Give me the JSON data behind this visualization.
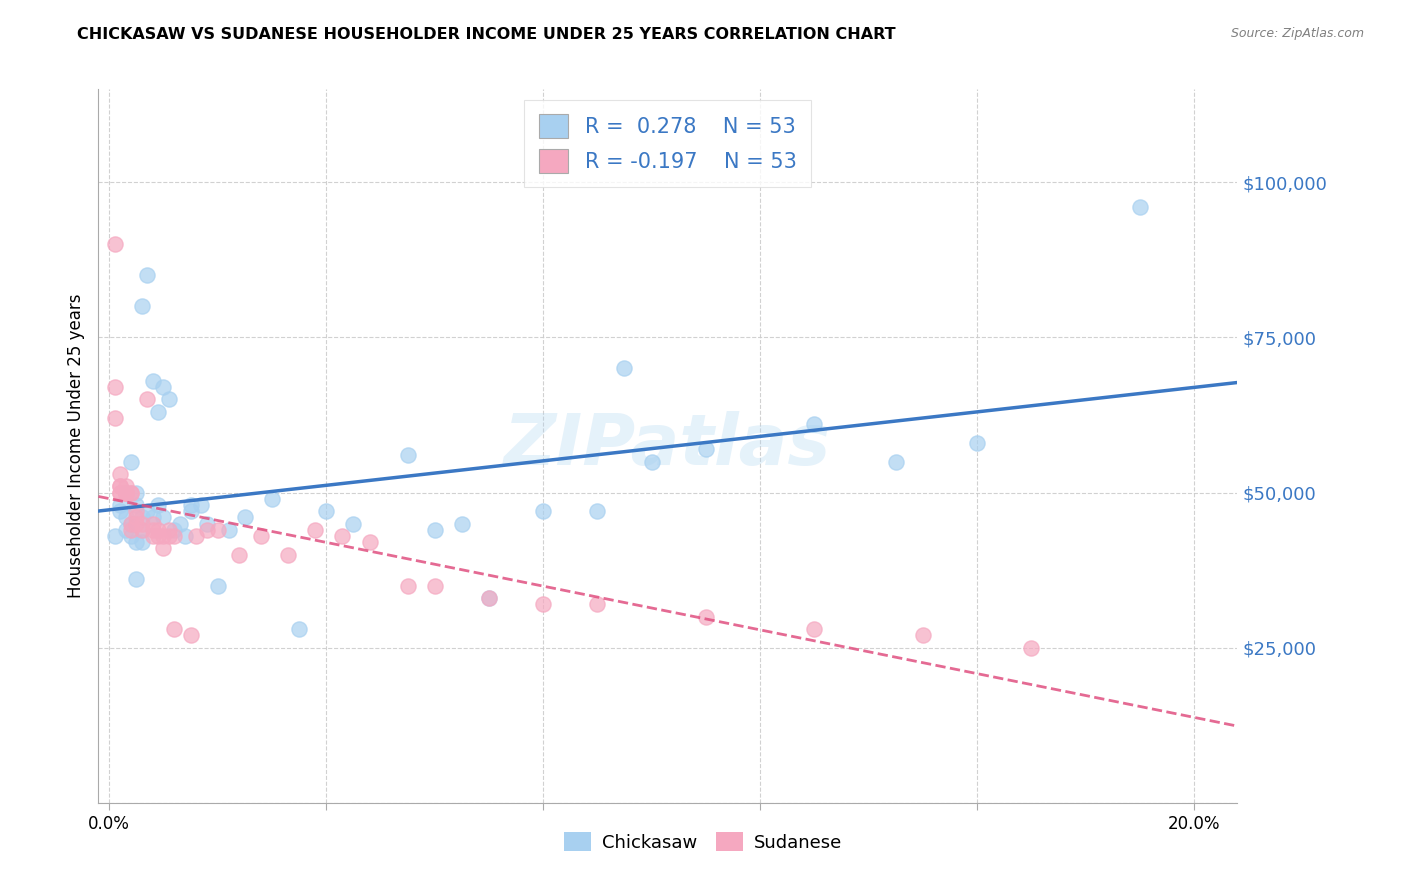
{
  "title": "CHICKASAW VS SUDANESE HOUSEHOLDER INCOME UNDER 25 YEARS CORRELATION CHART",
  "source": "Source: ZipAtlas.com",
  "ylabel_label": "Householder Income Under 25 years",
  "xlim": [
    -0.002,
    0.208
  ],
  "ylim": [
    0,
    115000
  ],
  "chickasaw_color": "#a8d0f0",
  "sudanese_color": "#f5a8c0",
  "chickasaw_line_color": "#3b78c4",
  "sudanese_line_color": "#e05080",
  "legend_R_chickasaw": "0.278",
  "legend_R_sudanese": "-0.197",
  "legend_N": "53",
  "watermark": "ZIPatlas",
  "chickasaw_x": [
    0.001,
    0.002,
    0.002,
    0.003,
    0.003,
    0.003,
    0.004,
    0.004,
    0.004,
    0.005,
    0.005,
    0.005,
    0.005,
    0.006,
    0.006,
    0.006,
    0.006,
    0.007,
    0.007,
    0.008,
    0.008,
    0.009,
    0.009,
    0.01,
    0.01,
    0.011,
    0.012,
    0.013,
    0.014,
    0.015,
    0.015,
    0.017,
    0.018,
    0.02,
    0.022,
    0.025,
    0.03,
    0.035,
    0.04,
    0.045,
    0.055,
    0.06,
    0.065,
    0.07,
    0.08,
    0.09,
    0.095,
    0.1,
    0.11,
    0.13,
    0.145,
    0.16,
    0.19
  ],
  "chickasaw_y": [
    43000,
    47000,
    48000,
    50000,
    44000,
    46000,
    45000,
    43000,
    55000,
    36000,
    42000,
    50000,
    48000,
    42000,
    44000,
    46000,
    80000,
    47000,
    85000,
    68000,
    46000,
    63000,
    48000,
    46000,
    67000,
    65000,
    44000,
    45000,
    43000,
    47000,
    48000,
    48000,
    45000,
    35000,
    44000,
    46000,
    49000,
    28000,
    47000,
    45000,
    56000,
    44000,
    45000,
    33000,
    47000,
    47000,
    70000,
    55000,
    57000,
    61000,
    55000,
    58000,
    96000
  ],
  "sudanese_x": [
    0.001,
    0.001,
    0.001,
    0.002,
    0.002,
    0.002,
    0.002,
    0.002,
    0.003,
    0.003,
    0.003,
    0.003,
    0.003,
    0.004,
    0.004,
    0.004,
    0.004,
    0.005,
    0.005,
    0.005,
    0.006,
    0.006,
    0.007,
    0.008,
    0.008,
    0.008,
    0.009,
    0.009,
    0.01,
    0.01,
    0.011,
    0.011,
    0.012,
    0.012,
    0.015,
    0.016,
    0.018,
    0.02,
    0.024,
    0.028,
    0.033,
    0.038,
    0.043,
    0.048,
    0.055,
    0.06,
    0.07,
    0.08,
    0.09,
    0.11,
    0.13,
    0.15,
    0.17
  ],
  "sudanese_y": [
    90000,
    67000,
    62000,
    50000,
    50000,
    51000,
    51000,
    53000,
    50000,
    50000,
    50000,
    51000,
    50000,
    50000,
    50000,
    44000,
    45000,
    46000,
    47000,
    45000,
    44000,
    45000,
    65000,
    45000,
    44000,
    43000,
    43000,
    44000,
    43000,
    41000,
    43000,
    44000,
    43000,
    28000,
    27000,
    43000,
    44000,
    44000,
    40000,
    43000,
    40000,
    44000,
    43000,
    42000,
    35000,
    35000,
    33000,
    32000,
    32000,
    30000,
    28000,
    27000,
    25000
  ],
  "y_ticks": [
    0,
    25000,
    50000,
    75000,
    100000
  ],
  "y_tick_labels": [
    "",
    "$25,000",
    "$50,000",
    "$75,000",
    "$100,000"
  ],
  "x_tick_positions": [
    0.0,
    0.04,
    0.08,
    0.12,
    0.16,
    0.2
  ],
  "x_tick_labels": [
    "0.0%",
    "",
    "",
    "",
    "",
    "20.0%"
  ]
}
